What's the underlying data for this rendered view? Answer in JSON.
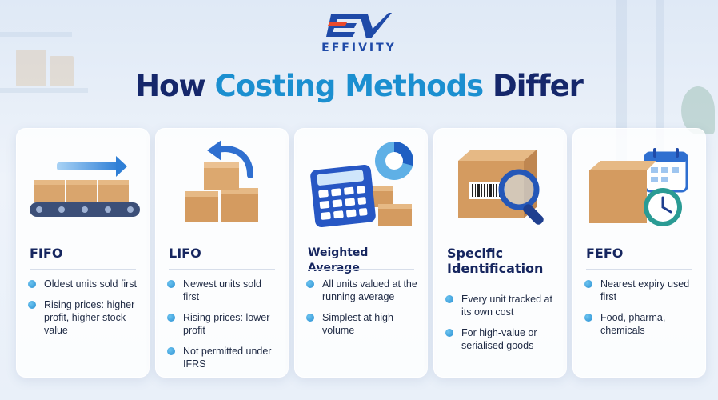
{
  "brand": {
    "name": "EFFIVITY",
    "mark": "EV"
  },
  "title": {
    "part1": "How ",
    "part2": "Costing Methods",
    "part3": " Differ"
  },
  "colors": {
    "title": "#15276b",
    "accent": "#1b8fd0",
    "brand": "#1f4aa8",
    "bullet": "#2a8fd2"
  },
  "cards": [
    {
      "title": "FIFO",
      "icon": "conveyor-boxes-arrow-right-icon",
      "bullets": [
        "Oldest units sold first",
        "Rising prices: higher profit, higher stock value"
      ]
    },
    {
      "title": "LIFO",
      "icon": "stacked-boxes-arrow-back-icon",
      "bullets": [
        "Newest units sold first",
        "Rising prices: lower profit",
        "Not permitted under IFRS"
      ]
    },
    {
      "title": "Weighted Average",
      "icon": "calculator-pie-chart-icon",
      "bullets": [
        "All units valued at the running average",
        "Simplest at high volume"
      ]
    },
    {
      "title": "Specific Identification",
      "icon": "box-barcode-magnifier-icon",
      "bullets": [
        "Every unit tracked at its own cost",
        "For high-value or serialised goods"
      ]
    },
    {
      "title": "FEFO",
      "icon": "box-calendar-clock-icon",
      "bullets": [
        "Nearest expiry used first",
        "Food, pharma, chemicals"
      ]
    }
  ]
}
